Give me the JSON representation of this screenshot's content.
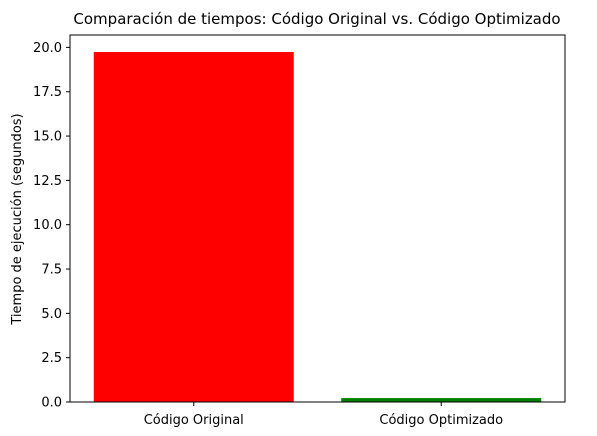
{
  "chart_data": {
    "type": "bar",
    "title": "Comparación de tiempos: Código Original vs. Código Optimizado",
    "xlabel": "",
    "ylabel": "Tiempo de ejecución (segundos)",
    "categories": [
      "Código Original",
      "Código Optimizado"
    ],
    "values": [
      19.74,
      0.22
    ],
    "colors": [
      "#ff0000",
      "#008000"
    ],
    "ylim": [
      0,
      20.7
    ],
    "yticks": [
      0.0,
      2.5,
      5.0,
      7.5,
      10.0,
      12.5,
      15.0,
      17.5,
      20.0
    ],
    "ytick_labels": [
      "0.0",
      "2.5",
      "5.0",
      "7.5",
      "10.0",
      "12.5",
      "15.0",
      "17.5",
      "20.0"
    ],
    "grid": false,
    "legend": "none"
  }
}
